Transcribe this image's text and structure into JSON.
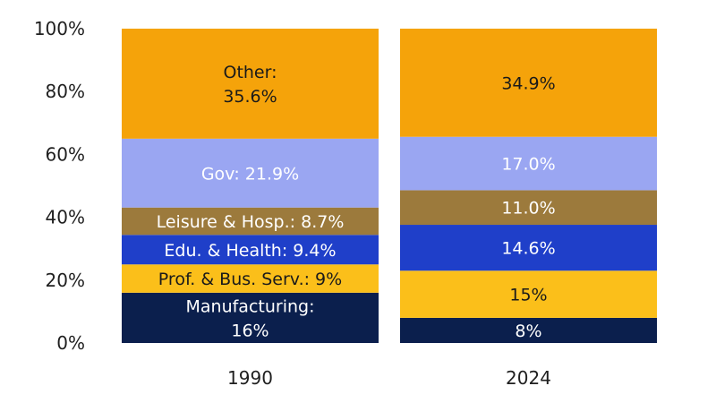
{
  "chart_data": {
    "type": "bar",
    "stacked": true,
    "title": "",
    "xlabel": "",
    "ylabel": "",
    "ylim": [
      0,
      100
    ],
    "yticks": [
      "0%",
      "20%",
      "40%",
      "60%",
      "80%",
      "100%"
    ],
    "categories": [
      "1990",
      "2024"
    ],
    "grid": false,
    "series": [
      {
        "name": "Manufacturing",
        "color": "#0b1f4d",
        "text_color": "#ffffff",
        "values": [
          16,
          8
        ],
        "labels": [
          [
            "Manufacturing:",
            "16%"
          ],
          [
            "8%"
          ]
        ]
      },
      {
        "name": "Prof. & Bus. Serv.",
        "color": "#fbbf1a",
        "text_color": "#1a1a1a",
        "values": [
          9,
          15
        ],
        "labels": [
          [
            "Prof. & Bus. Serv.: 9%"
          ],
          [
            "15%"
          ]
        ]
      },
      {
        "name": "Edu. & Health",
        "color": "#1f3fc9",
        "text_color": "#ffffff",
        "values": [
          9.4,
          14.6
        ],
        "labels": [
          [
            "Edu. & Health: 9.4%"
          ],
          [
            "14.6%"
          ]
        ]
      },
      {
        "name": "Leisure & Hosp.",
        "color": "#9c7a3c",
        "text_color": "#ffffff",
        "values": [
          8.7,
          11.0
        ],
        "labels": [
          [
            "Leisure & Hosp.: 8.7%"
          ],
          [
            "11.0%"
          ]
        ]
      },
      {
        "name": "Gov",
        "color": "#9aa6f2",
        "text_color": "#ffffff",
        "values": [
          21.9,
          17.0
        ],
        "labels": [
          [
            "Gov: 21.9%"
          ],
          [
            "17.0%"
          ]
        ]
      },
      {
        "name": "Other",
        "color": "#f5a30a",
        "text_color": "#1a1a1a",
        "values": [
          35.6,
          34.9
        ],
        "labels": [
          [
            "Other:",
            "35.6%"
          ],
          [
            "34.9%"
          ]
        ]
      }
    ]
  }
}
